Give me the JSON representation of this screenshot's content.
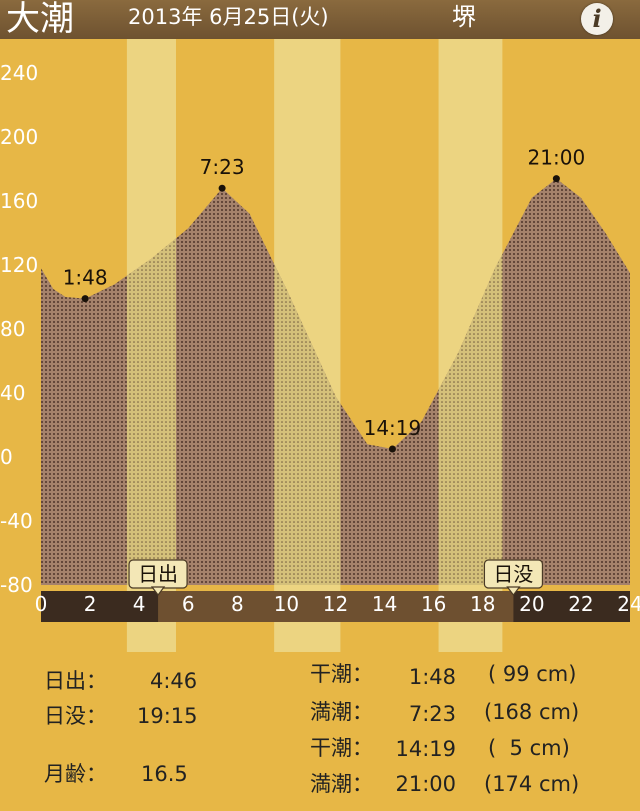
{
  "header": {
    "title": "大潮",
    "date": "2013年 6月25日(火)",
    "location": "堺",
    "info_icon": "info-icon",
    "info_glyph": "i"
  },
  "chart_data": {
    "type": "area",
    "x": [
      0,
      0.5,
      1,
      1.8,
      3,
      4.5,
      6,
      7.38,
      8.5,
      10,
      12,
      13.3,
      14.32,
      15.5,
      17,
      18.5,
      20,
      21,
      22,
      23,
      24
    ],
    "y": [
      118,
      105,
      100,
      99,
      108,
      124,
      143,
      168,
      152,
      105,
      38,
      8,
      5,
      22,
      65,
      118,
      162,
      174,
      162,
      140,
      115
    ],
    "xlim": [
      0,
      24
    ],
    "ylim": [
      -80,
      240
    ],
    "xticks": [
      0,
      2,
      4,
      6,
      8,
      10,
      12,
      14,
      16,
      18,
      20,
      22,
      24
    ],
    "yticks": [
      -80,
      -40,
      0,
      40,
      80,
      120,
      160,
      200,
      240
    ],
    "daylight_bands": [
      [
        3.5,
        5.5
      ],
      [
        9.5,
        12.2
      ],
      [
        16.2,
        18.8
      ]
    ],
    "sunrise_hour": 4.77,
    "sunset_hour": 19.25,
    "sunrise_label": "日出",
    "sunset_label": "日没",
    "extrema": [
      {
        "label": "1:48",
        "x": 1.8,
        "y": 99
      },
      {
        "label": "7:23",
        "x": 7.38,
        "y": 168
      },
      {
        "label": "14:19",
        "x": 14.32,
        "y": 5
      },
      {
        "label": "21:00",
        "x": 21,
        "y": 174
      }
    ]
  },
  "info": {
    "sunrise_label": "日出：",
    "sunrise_time": "4:46",
    "sunset_label": "日没：",
    "sunset_time": "19:15",
    "moon_age_label": "月齢：",
    "moon_age": "16.5",
    "tides": [
      {
        "type": "干潮：",
        "time": "1:48",
        "height": "( 99 cm)"
      },
      {
        "type": "満潮：",
        "time": "7:23",
        "height": "(168 cm)"
      },
      {
        "type": "干潮：",
        "time": "14:19",
        "height": "(  5 cm)"
      },
      {
        "type": "満潮：",
        "time": "21:00",
        "height": "(174 cm)"
      }
    ]
  }
}
